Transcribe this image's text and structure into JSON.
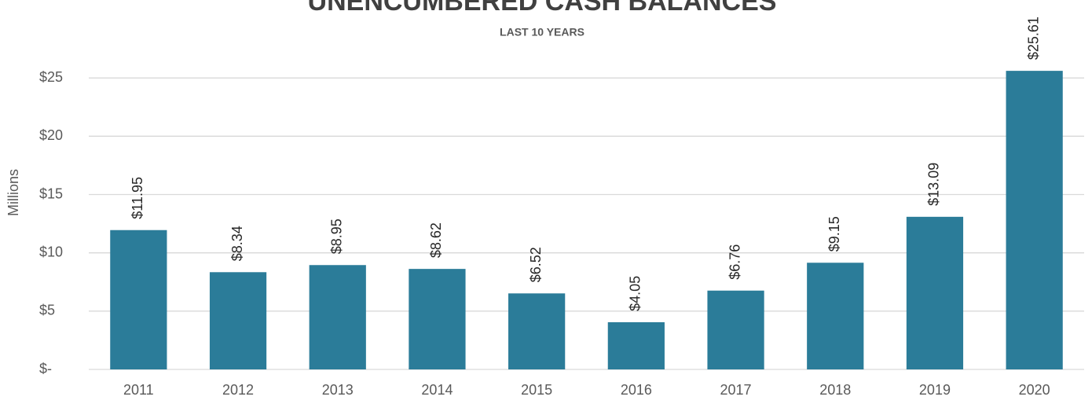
{
  "chart_data": {
    "type": "bar",
    "title": "UNENCUMBERED CASH BALANCES",
    "subtitle": "LAST 10 YEARS",
    "y_label": "Millions",
    "categories": [
      "2011",
      "2012",
      "2013",
      "2014",
      "2015",
      "2016",
      "2017",
      "2018",
      "2019",
      "2020"
    ],
    "values": [
      11.95,
      8.34,
      8.95,
      8.62,
      6.52,
      4.05,
      6.76,
      9.15,
      13.09,
      25.61
    ],
    "value_labels": [
      "$11.95",
      "$8.34",
      "$8.95",
      "$8.62",
      "$6.52",
      "$4.05",
      "$6.76",
      "$9.15",
      "$13.09",
      "$25.61"
    ],
    "color": "#2b7c99",
    "ylim": [
      0,
      30
    ],
    "yticks": [
      {
        "value": 0,
        "label": "$-"
      },
      {
        "value": 5,
        "label": "$5"
      },
      {
        "value": 10,
        "label": "$10"
      },
      {
        "value": 15,
        "label": "$15"
      },
      {
        "value": 20,
        "label": "$20"
      },
      {
        "value": 25,
        "label": "$25"
      }
    ],
    "grid": true
  }
}
